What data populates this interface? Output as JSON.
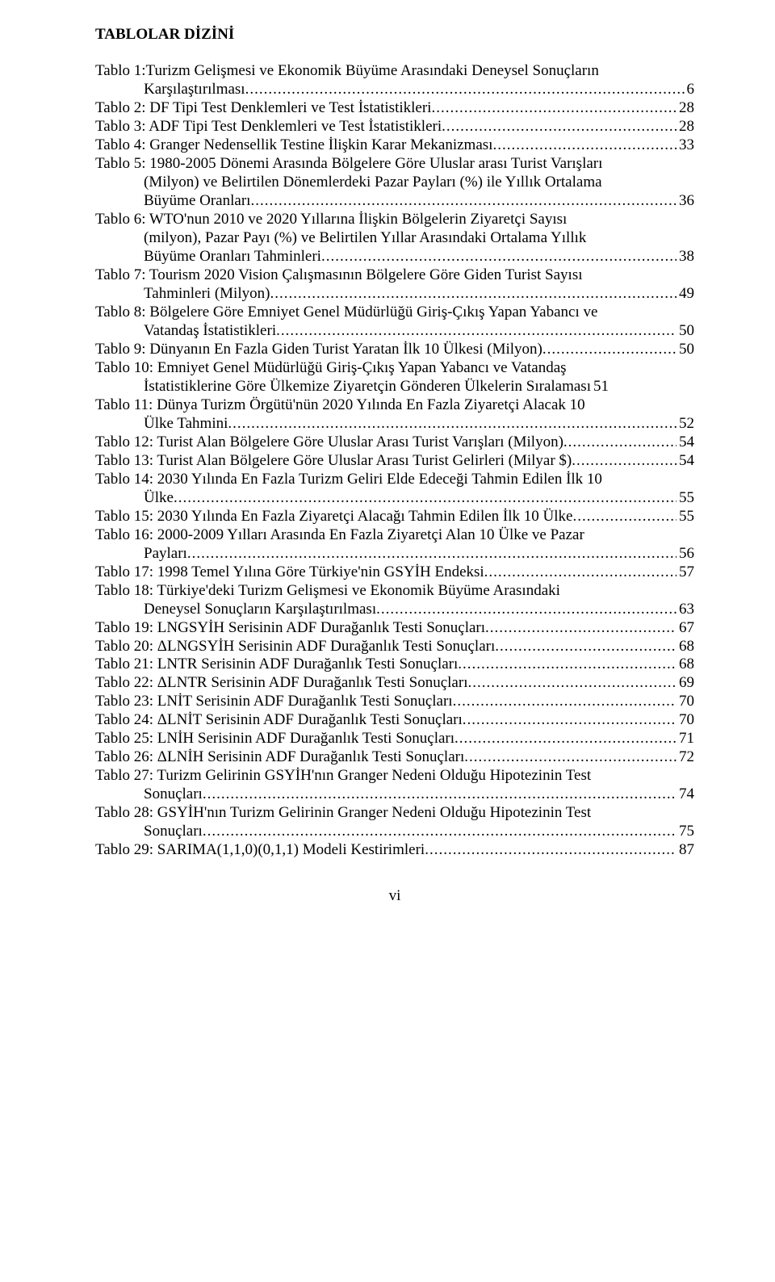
{
  "heading": "TABLOLAR DİZİNİ",
  "entries": [
    {
      "lines": [
        "Tablo 1:Turizm Gelişmesi ve Ekonomik Büyüme Arasındaki Deneysel Sonuçların"
      ],
      "last": "Karşılaştırılması",
      "page": "6",
      "indent": true
    },
    {
      "lines": [],
      "last": "Tablo 2: DF Tipi Test Denklemleri ve Test İstatistikleri",
      "page": "28",
      "indent": false
    },
    {
      "lines": [],
      "last": "Tablo 3: ADF Tipi Test Denklemleri ve Test İstatistikleri",
      "page": "28",
      "indent": false
    },
    {
      "lines": [],
      "last": "Tablo 4: Granger Nedensellik Testine İlişkin Karar Mekanizması",
      "page": "33",
      "indent": false
    },
    {
      "lines": [
        "Tablo 5: 1980-2005 Dönemi Arasında Bölgelere Göre Uluslar arası Turist Varışları",
        "(Milyon) ve Belirtilen Dönemlerdeki Pazar Payları (%) ile Yıllık Ortalama"
      ],
      "last": "Büyüme Oranları",
      "page": "36",
      "indent": true
    },
    {
      "lines": [
        "Tablo 6: WTO'nun 2010 ve 2020 Yıllarına İlişkin Bölgelerin Ziyaretçi Sayısı",
        "(milyon), Pazar Payı (%) ve Belirtilen Yıllar Arasındaki Ortalama Yıllık"
      ],
      "last": "Büyüme Oranları Tahminleri",
      "page": "38",
      "indent": true
    },
    {
      "lines": [
        "Tablo 7: Tourism 2020 Vision Çalışmasının Bölgelere Göre Giden Turist Sayısı"
      ],
      "last": "Tahminleri (Milyon)",
      "page": "49",
      "indent": true
    },
    {
      "lines": [
        "Tablo 8: Bölgelere Göre Emniyet Genel Müdürlüğü Giriş-Çıkış Yapan Yabancı ve"
      ],
      "last": "Vatandaş İstatistikleri",
      "page": "50",
      "indent": true
    },
    {
      "lines": [],
      "last": "Tablo 9: Dünyanın En Fazla Giden Turist Yaratan İlk 10 Ülkesi (Milyon)",
      "page": "50",
      "indent": false
    },
    {
      "lines": [
        "Tablo 10: Emniyet Genel Müdürlüğü Giriş-Çıkış Yapan Yabancı ve Vatandaş"
      ],
      "last": "İstatistiklerine Göre Ülkemize Ziyaretçin Gönderen Ülkelerin Sıralaması",
      "page": "51",
      "indent": true,
      "nodots": true
    },
    {
      "lines": [
        "Tablo 11: Dünya Turizm Örgütü'nün 2020 Yılında En Fazla Ziyaretçi Alacak 10"
      ],
      "last": "Ülke Tahmini",
      "page": "52",
      "indent": true
    },
    {
      "lines": [],
      "last": "Tablo 12: Turist Alan Bölgelere Göre Uluslar Arası Turist Varışları (Milyon)",
      "page": "54",
      "indent": false
    },
    {
      "lines": [],
      "last": "Tablo 13: Turist Alan Bölgelere Göre Uluslar Arası Turist Gelirleri (Milyar $)",
      "page": "54",
      "indent": false
    },
    {
      "lines": [
        "Tablo 14: 2030 Yılında En Fazla Turizm Geliri Elde Edeceği Tahmin Edilen İlk 10"
      ],
      "last": "Ülke",
      "page": "55",
      "indent": true
    },
    {
      "lines": [],
      "last": "Tablo 15: 2030 Yılında En Fazla Ziyaretçi Alacağı Tahmin Edilen İlk 10 Ülke",
      "page": "55",
      "indent": false
    },
    {
      "lines": [
        "Tablo 16: 2000-2009 Yılları Arasında En Fazla Ziyaretçi Alan 10 Ülke ve Pazar"
      ],
      "last": "Payları",
      "page": "56",
      "indent": true
    },
    {
      "lines": [],
      "last": "Tablo 17: 1998 Temel Yılına Göre Türkiye'nin GSYİH Endeksi",
      "page": "57",
      "indent": false
    },
    {
      "lines": [
        "Tablo 18: Türkiye'deki Turizm Gelişmesi ve Ekonomik Büyüme Arasındaki"
      ],
      "last": "Deneysel Sonuçların Karşılaştırılması",
      "page": "63",
      "indent": true
    },
    {
      "lines": [],
      "last": "Tablo 19: LNGSYİH Serisinin ADF Durağanlık Testi Sonuçları",
      "page": "67",
      "indent": false
    },
    {
      "lines": [],
      "last": "Tablo 20: ΔLNGSYİH Serisinin ADF Durağanlık Testi Sonuçları",
      "page": "68",
      "indent": false
    },
    {
      "lines": [],
      "last": "Tablo 21: LNTR Serisinin ADF Durağanlık Testi Sonuçları",
      "page": "68",
      "indent": false
    },
    {
      "lines": [],
      "last": "Tablo 22: ΔLNTR Serisinin ADF Durağanlık Testi Sonuçları",
      "page": "69",
      "indent": false
    },
    {
      "lines": [],
      "last": "Tablo 23: LNİT Serisinin ADF Durağanlık Testi Sonuçları",
      "page": "70",
      "indent": false
    },
    {
      "lines": [],
      "last": "Tablo 24: ΔLNİT Serisinin ADF Durağanlık Testi Sonuçları",
      "page": "70",
      "indent": false
    },
    {
      "lines": [],
      "last": "Tablo 25: LNİH Serisinin ADF Durağanlık Testi Sonuçları",
      "page": "71",
      "indent": false
    },
    {
      "lines": [],
      "last": "Tablo 26: ΔLNİH Serisinin ADF Durağanlık Testi Sonuçları",
      "page": "72",
      "indent": false
    },
    {
      "lines": [
        "Tablo 27: Turizm Gelirinin GSYİH'nın Granger Nedeni Olduğu Hipotezinin Test"
      ],
      "last": "Sonuçları",
      "page": "74",
      "indent": true
    },
    {
      "lines": [
        "Tablo 28: GSYİH'nın Turizm Gelirinin Granger Nedeni Olduğu Hipotezinin Test"
      ],
      "last": "Sonuçları",
      "page": "75",
      "indent": true
    },
    {
      "lines": [],
      "last": "Tablo 29: SARIMA(1,1,0)(0,1,1) Modeli Kestirimleri",
      "page": "87",
      "indent": false
    }
  ],
  "footer": "vi"
}
